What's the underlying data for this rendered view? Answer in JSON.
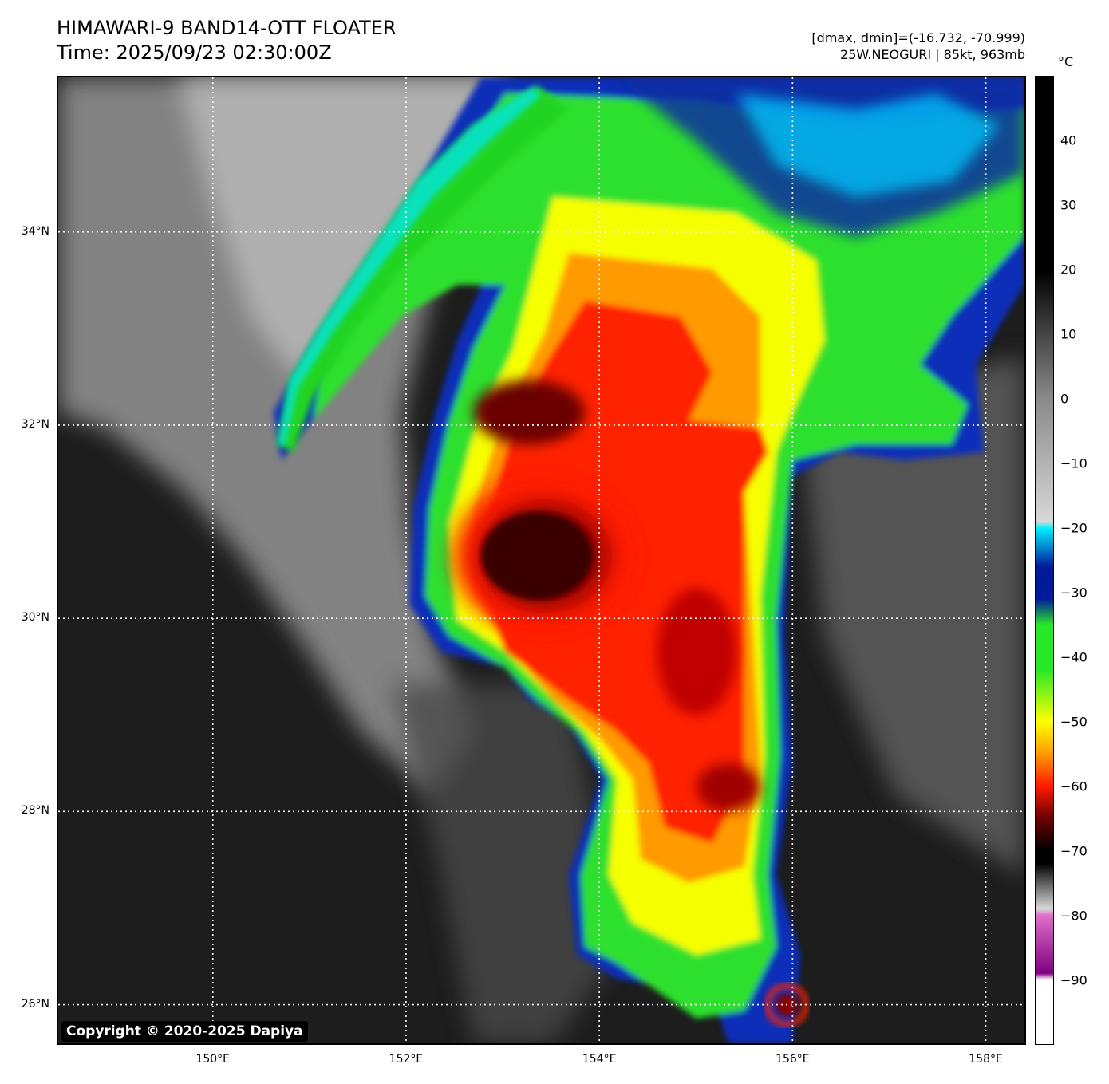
{
  "header": {
    "title_line1": "HIMAWARI-9 BAND14-OTT FLOATER",
    "title_line2": "Time: 2025/09/23 02:30:00Z",
    "dmax_dmin": "[dmax, dmin]=(-16.732, -70.999)",
    "storm": "25W.NEOGURI | 85kt, 963mb"
  },
  "map": {
    "lat_range": [
      25.6,
      35.6
    ],
    "lon_range": [
      148.4,
      158.4
    ],
    "lat_labels": [
      "34°N",
      "32°N",
      "30°N",
      "28°N",
      "26°N"
    ],
    "lat_values": [
      34,
      32,
      30,
      28,
      26
    ],
    "lon_labels": [
      "150°E",
      "152°E",
      "154°E",
      "156°E",
      "158°E"
    ],
    "lon_values": [
      150,
      152,
      154,
      156,
      158
    ],
    "copyright": "Copyright © 2020-2025 Dapiya"
  },
  "colorbar": {
    "unit": "°C",
    "range": [
      -100,
      50
    ],
    "ticks": [
      "40",
      "30",
      "20",
      "10",
      "0",
      "−10",
      "−20",
      "−30",
      "−40",
      "−50",
      "−60",
      "−70",
      "−80",
      "−90"
    ],
    "tick_values": [
      40,
      30,
      20,
      10,
      0,
      -10,
      -20,
      -30,
      -40,
      -50,
      -60,
      -70,
      -80,
      -90
    ],
    "colors": {
      "warm": "#000000",
      "gray": "#8a8a8a",
      "light": "#d8d8d8",
      "cyan": "#00f0ff",
      "blue": "#001a9a",
      "green": "#28e828",
      "yellow": "#ffff00",
      "orange": "#ff9a00",
      "red": "#ff1a00",
      "dark_red": "#6a0000",
      "pink": "#e070c8",
      "purple": "#800080",
      "white": "#ffffff"
    }
  }
}
